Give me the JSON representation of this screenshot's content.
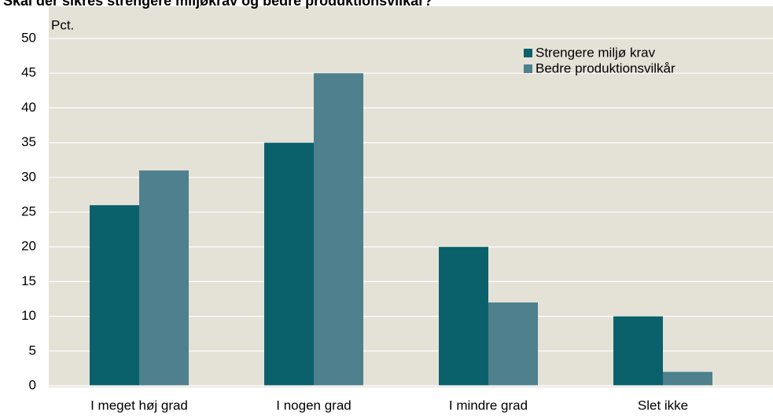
{
  "chart_data": {
    "type": "bar",
    "title": "Skal der sikres strengere miljøkrav og bedre produktionsvilkår?",
    "y_label": "Pct.",
    "categories": [
      "I meget høj grad",
      "I nogen grad",
      "I mindre grad",
      "Slet ikke"
    ],
    "series": [
      {
        "name": "Strengere miljø krav",
        "color": "#0b616b",
        "values": [
          26,
          35,
          20,
          10
        ]
      },
      {
        "name": "Bedre produktionsvilkår",
        "color": "#4e808d",
        "values": [
          31,
          45,
          12,
          2
        ]
      }
    ],
    "ylim": [
      0,
      50
    ],
    "yticks": [
      0,
      5,
      10,
      15,
      20,
      25,
      30,
      35,
      40,
      45,
      50
    ],
    "grid": true,
    "legend": "upper right"
  }
}
